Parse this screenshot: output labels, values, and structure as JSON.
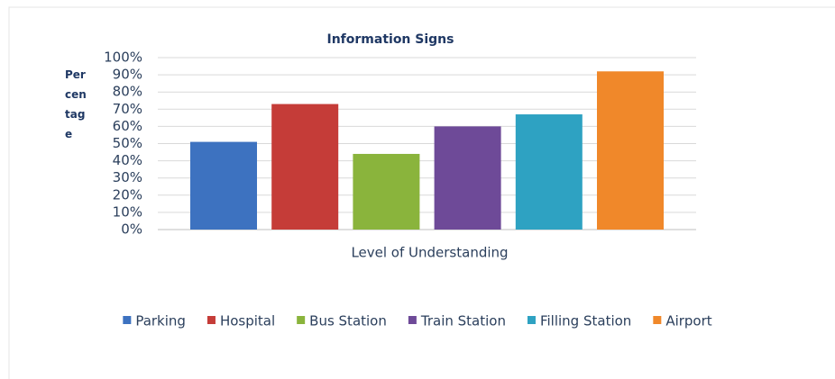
{
  "chart_data": {
    "type": "bar",
    "title": "Information Signs",
    "y_label": "Percentage",
    "categories": [
      "Level of Understanding"
    ],
    "series": [
      {
        "name": "Parking",
        "color": "#3d72c0",
        "values": [
          51
        ]
      },
      {
        "name": "Hospital",
        "color": "#c53c38",
        "values": [
          73
        ]
      },
      {
        "name": "Bus Station",
        "color": "#8ab43c",
        "values": [
          44
        ]
      },
      {
        "name": "Train Station",
        "color": "#6e4a98",
        "values": [
          60
        ]
      },
      {
        "name": "Filling Station",
        "color": "#2ea2c2",
        "values": [
          67
        ]
      },
      {
        "name": "Airport",
        "color": "#f0882a",
        "values": [
          92
        ]
      }
    ],
    "ylim": [
      0,
      100
    ],
    "yticks": [
      {
        "value": 0,
        "label": "0%"
      },
      {
        "value": 10,
        "label": "10%"
      },
      {
        "value": 20,
        "label": "20%"
      },
      {
        "value": 30,
        "label": "30%"
      },
      {
        "value": 40,
        "label": "40%"
      },
      {
        "value": 50,
        "label": "50%"
      },
      {
        "value": 60,
        "label": "60%"
      },
      {
        "value": 70,
        "label": "70%"
      },
      {
        "value": 80,
        "label": "80%"
      },
      {
        "value": 90,
        "label": "90%"
      },
      {
        "value": 100,
        "label": "100%"
      }
    ],
    "grid": true,
    "legend": "bottom"
  }
}
